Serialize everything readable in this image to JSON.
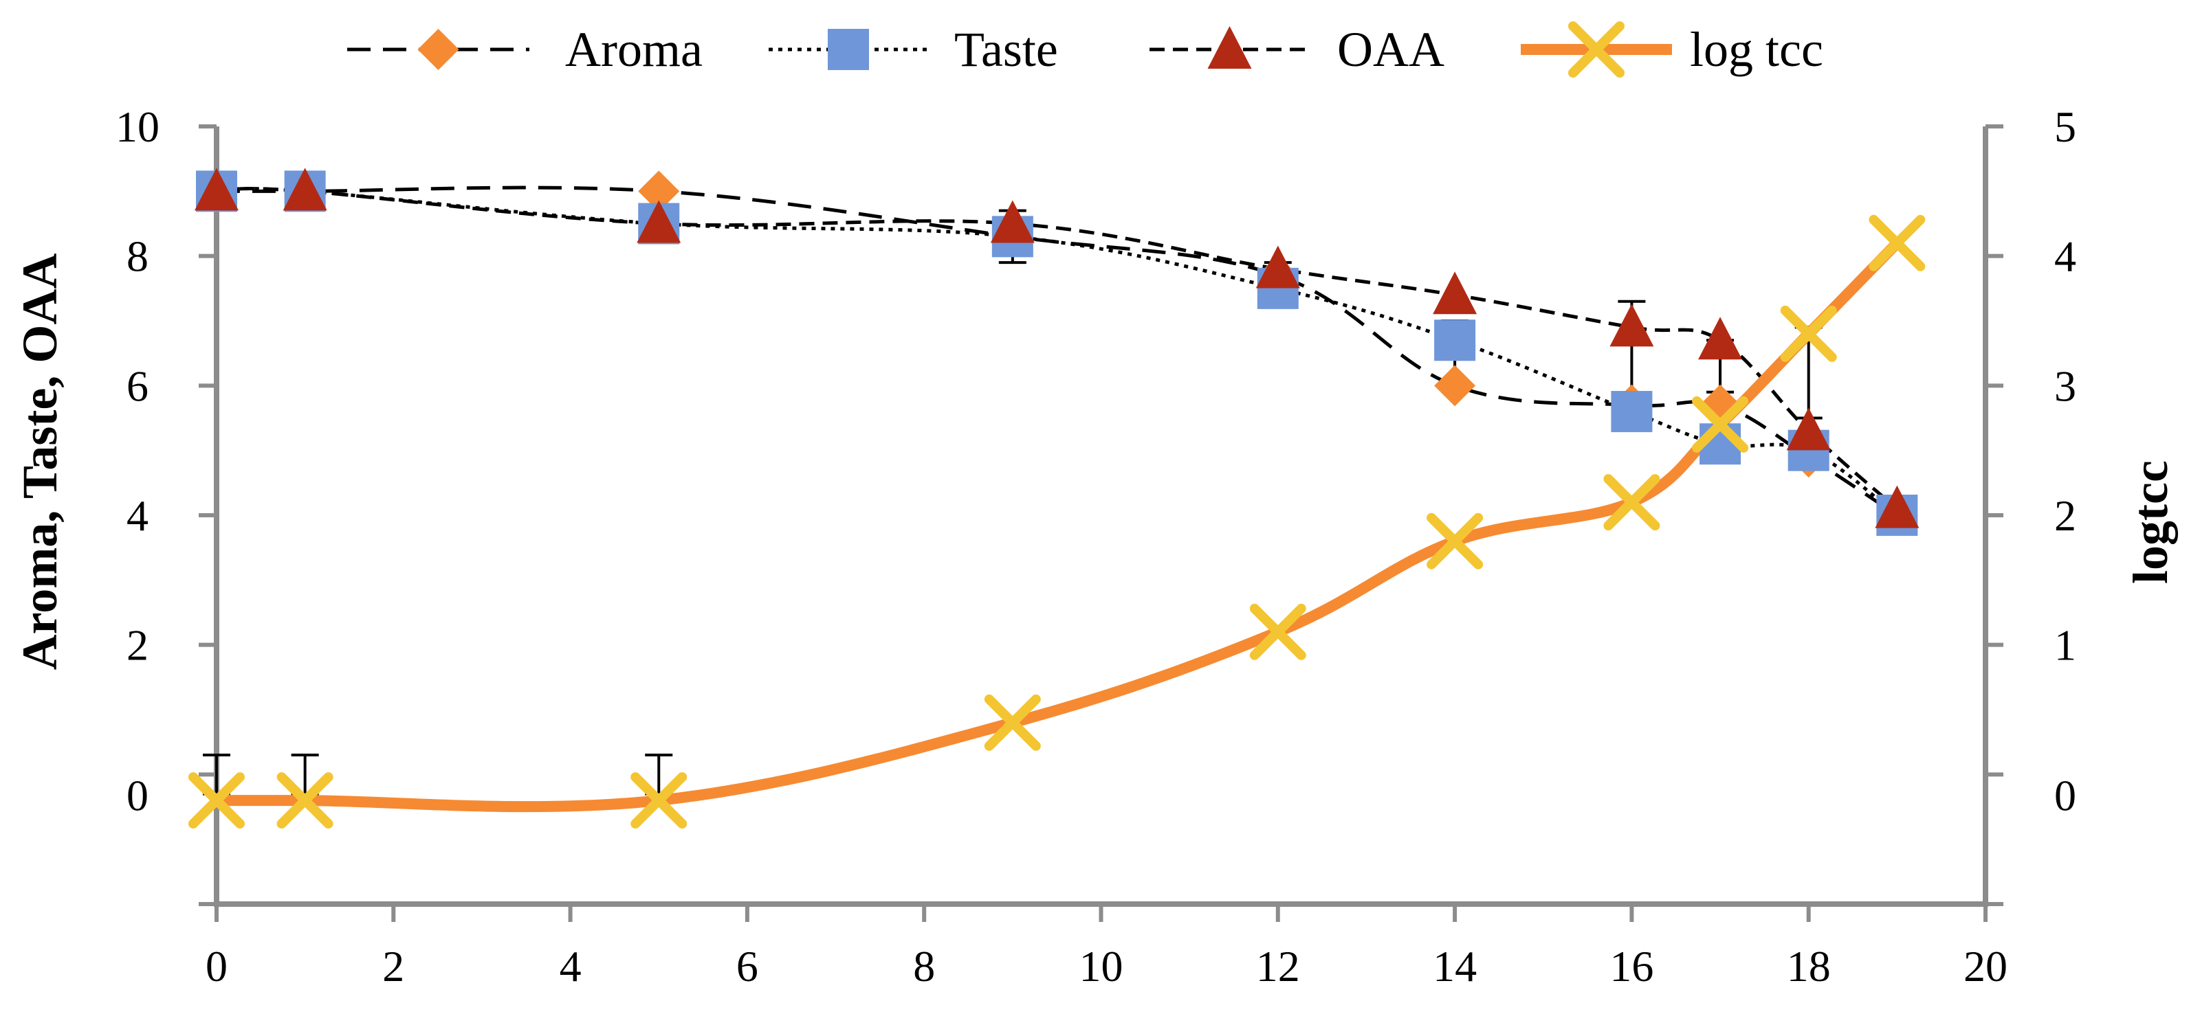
{
  "chart_data": {
    "type": "line",
    "title": "",
    "xlabel": "",
    "ylabel": "Aroma,  Taste,  OAA",
    "y2label": "logtcc",
    "xlim": [
      0,
      20
    ],
    "ylim": [
      -2,
      10
    ],
    "y2lim": [
      -1,
      5
    ],
    "x_ticks": [
      0,
      2,
      4,
      6,
      8,
      10,
      12,
      14,
      16,
      18,
      20
    ],
    "y_ticks": [
      0,
      2,
      4,
      6,
      8,
      10
    ],
    "y2_ticks": [
      0,
      1,
      2,
      3,
      4,
      5
    ],
    "legend_position": "top",
    "grid": false,
    "x": [
      0,
      1,
      5,
      9,
      12,
      14,
      16,
      17,
      18,
      19
    ],
    "series": [
      {
        "name": "Aroma",
        "axis": "left",
        "marker": "diamond",
        "line": "long-dash",
        "color": "#F58A32",
        "line_color": "#000000",
        "x": [
          0,
          1,
          5,
          9,
          12,
          14,
          16,
          17,
          18,
          19
        ],
        "values": [
          9.0,
          9.0,
          9.0,
          8.3,
          7.7,
          6.0,
          5.7,
          5.7,
          4.9,
          4.0
        ]
      },
      {
        "name": "Taste",
        "axis": "left",
        "marker": "square",
        "line": "dotted",
        "color": "#6F96D8",
        "line_color": "#000000",
        "x": [
          0,
          1,
          5,
          9,
          12,
          14,
          16,
          17,
          18,
          19
        ],
        "values": [
          9.0,
          9.0,
          8.5,
          8.3,
          7.5,
          6.7,
          5.6,
          5.1,
          5.0,
          4.0
        ]
      },
      {
        "name": "OAA",
        "axis": "left",
        "marker": "triangle",
        "line": "dashed",
        "color": "#B22A14",
        "line_color": "#000000",
        "x": [
          0,
          1,
          5,
          9,
          12,
          14,
          16,
          17,
          18,
          19
        ],
        "values": [
          9.0,
          9.0,
          8.5,
          8.5,
          7.8,
          7.4,
          6.9,
          6.7,
          5.3,
          4.1
        ]
      },
      {
        "name": "log tcc",
        "axis": "right",
        "marker": "x",
        "line": "solid-thick",
        "color": "#F58A32",
        "marker_color": "#F4C532",
        "x": [
          0,
          1,
          5,
          9,
          12,
          14,
          16,
          17,
          18,
          19
        ],
        "values": [
          -0.2,
          -0.2,
          -0.2,
          0.4,
          1.1,
          1.8,
          2.1,
          2.7,
          3.4,
          4.1
        ]
      }
    ],
    "error_bars": [
      {
        "x": 0,
        "y": 0.0,
        "err": 0.3
      },
      {
        "x": 1,
        "y": 0.0,
        "err": 0.3
      },
      {
        "x": 5,
        "y": 0.0,
        "err": 0.3
      },
      {
        "x": 9,
        "y": 8.3,
        "err": 0.4
      },
      {
        "x": 12,
        "y": 7.6,
        "err": 0.3
      },
      {
        "x": 14,
        "y": 6.5,
        "err": 0.5
      },
      {
        "x": 16,
        "y": 6.4,
        "err": 0.9
      },
      {
        "x": 17,
        "y": 6.3,
        "err": 0.4
      },
      {
        "x": 18,
        "y": 6.2,
        "err": 0.7
      }
    ]
  }
}
